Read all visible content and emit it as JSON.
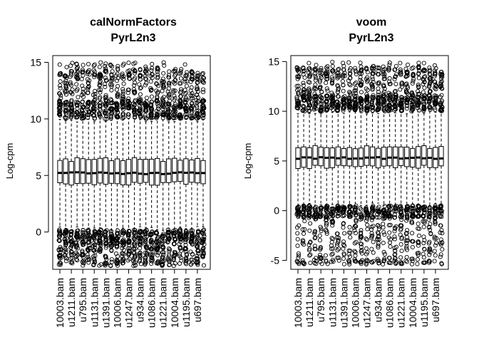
{
  "figure": {
    "background": "#ffffff",
    "box_color": "#000000",
    "outlier_color": "#000000"
  },
  "chart_data": [
    {
      "type": "boxplot",
      "title": "calNormFactors",
      "subtitle": "PyrL2n3",
      "xlabel": "",
      "ylabel": "Log-cpm",
      "ylim": [
        -3.3,
        15.6
      ],
      "yticks": [
        0,
        5,
        10,
        15
      ],
      "grid": false,
      "legend": "none",
      "categories": [
        "10003.bam",
        "u1211.bam",
        "u795.bam",
        "u1131.bam",
        "u1391.bam",
        "10006.bam",
        "u1247.bam",
        "u934.bam",
        "u1086.bam",
        "u1221.bam",
        "10004.bam",
        "u1195.bam",
        "u697.bam"
      ],
      "n_boxes": 26,
      "summary": {
        "whisker_low": 0.3,
        "q1": 4.3,
        "median": 5.2,
        "q3": 6.4,
        "whisker_high": 9.9,
        "outliers_high_range": [
          10.0,
          15.0
        ],
        "outliers_low_range": [
          -3.0,
          0.2
        ]
      }
    },
    {
      "type": "boxplot",
      "title": "voom",
      "subtitle": "PyrL2n3",
      "xlabel": "",
      "ylabel": "Log-cpm",
      "ylim": [
        -5.9,
        15.6
      ],
      "yticks": [
        -5,
        0,
        5,
        10,
        15
      ],
      "grid": false,
      "legend": "none",
      "categories": [
        "10003.bam",
        "u1211.bam",
        "u795.bam",
        "u1131.bam",
        "u1391.bam",
        "10006.bam",
        "u1247.bam",
        "u934.bam",
        "u1086.bam",
        "u1221.bam",
        "10004.bam",
        "u1195.bam",
        "u697.bam"
      ],
      "n_boxes": 26,
      "summary": {
        "whisker_low": 0.6,
        "q1": 4.4,
        "median": 5.3,
        "q3": 6.4,
        "whisker_high": 9.9,
        "outliers_high_range": [
          10.0,
          15.0
        ],
        "outliers_low_range": [
          -5.4,
          0.5
        ]
      }
    }
  ]
}
